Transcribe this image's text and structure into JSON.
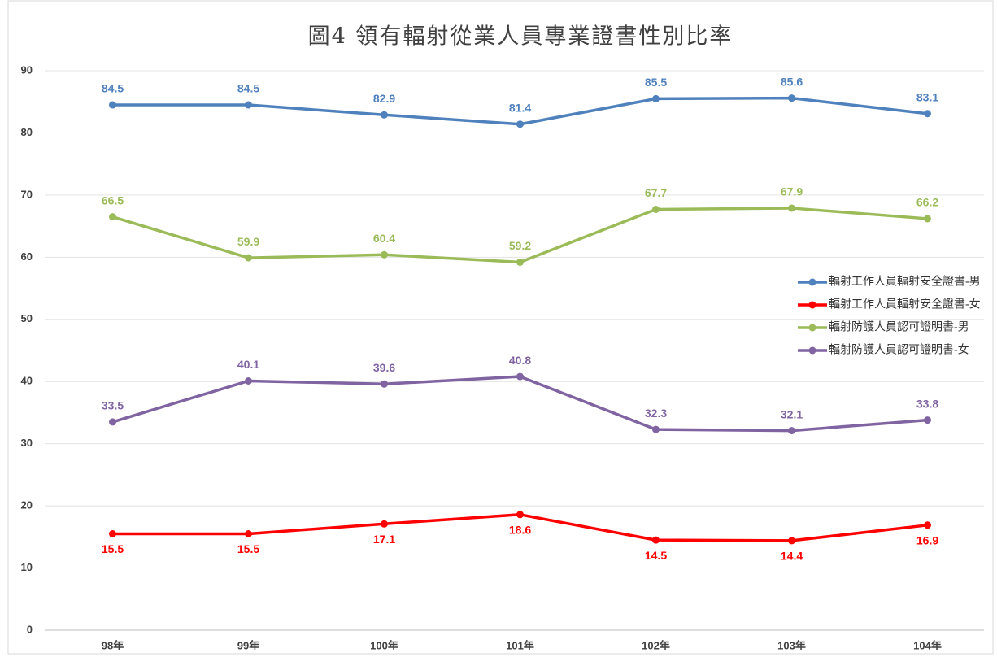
{
  "chart_data": {
    "type": "line",
    "title": "圖4 領有輻射從業人員專業證書性別比率",
    "categories": [
      "98年",
      "99年",
      "100年",
      "101年",
      "102年",
      "103年",
      "104年"
    ],
    "series": [
      {
        "name": "輻射工作人員輻射安全證書-男",
        "color": "#4f81bd",
        "label_position": "above",
        "values": [
          84.5,
          84.5,
          82.9,
          81.4,
          85.5,
          85.6,
          83.1
        ]
      },
      {
        "name": "輻射工作人員輻射安全證書-女",
        "color": "#ff0000",
        "label_position": "below",
        "values": [
          15.5,
          15.5,
          17.1,
          18.6,
          14.5,
          14.4,
          16.9
        ]
      },
      {
        "name": "輻射防護人員認可證明書-男",
        "color": "#9bbb59",
        "label_position": "above",
        "values": [
          66.5,
          59.9,
          60.4,
          59.2,
          67.7,
          67.9,
          66.2
        ]
      },
      {
        "name": "輻射防護人員認可證明書-女",
        "color": "#8064a2",
        "label_position": "above",
        "values": [
          33.5,
          40.1,
          39.6,
          40.8,
          32.3,
          32.1,
          33.8
        ]
      }
    ],
    "ylim": [
      0,
      90
    ],
    "yticks": [
      0,
      10,
      20,
      30,
      40,
      50,
      60,
      70,
      80,
      90
    ],
    "grid": true,
    "legend": "right"
  }
}
